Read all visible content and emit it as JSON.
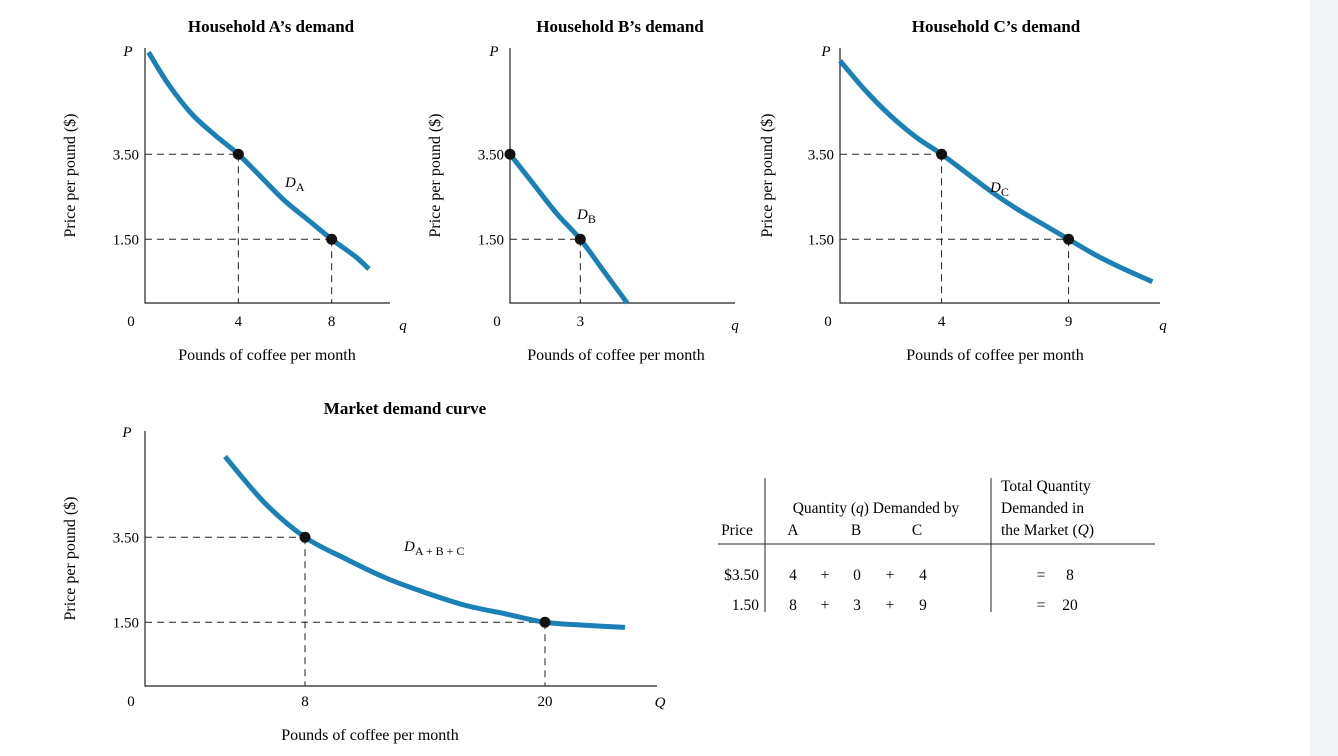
{
  "colors": {
    "curve": "#1a80b6",
    "ink": "#222222"
  },
  "chart_data": [
    {
      "type": "line",
      "title": "Household A’s demand",
      "ylabel": "Price per pound ($)",
      "xlabel": "Pounds of coffee per month",
      "x_axis_letter": "q",
      "y_axis_letter": "P",
      "origin_label": "0",
      "curve_label": "D",
      "curve_label_sub": "A",
      "xticks": [
        "4",
        "8"
      ],
      "yticks": [
        "3.50",
        "1.50"
      ],
      "xlim": [
        0,
        10.5
      ],
      "ylim": [
        0,
        6.0
      ],
      "curve": [
        [
          0.15,
          5.9
        ],
        [
          1,
          5.15
        ],
        [
          2,
          4.45
        ],
        [
          3,
          3.95
        ],
        [
          4,
          3.5
        ],
        [
          5,
          2.95
        ],
        [
          6,
          2.4
        ],
        [
          7,
          1.95
        ],
        [
          8,
          1.5
        ],
        [
          9,
          1.1
        ],
        [
          9.6,
          0.8
        ]
      ],
      "points": [
        {
          "x": 4,
          "y": 3.5
        },
        {
          "x": 8,
          "y": 1.5
        }
      ]
    },
    {
      "type": "line",
      "title": "Household B’s demand",
      "ylabel": "Price per pound ($)",
      "xlabel": "Pounds of coffee per month",
      "x_axis_letter": "q",
      "y_axis_letter": "P",
      "origin_label": "0",
      "curve_label": "D",
      "curve_label_sub": "B",
      "xticks": [
        "3"
      ],
      "yticks": [
        "3.50",
        "1.50"
      ],
      "xlim": [
        0,
        9.6
      ],
      "ylim": [
        0,
        6.0
      ],
      "curve": [
        [
          0,
          3.5
        ],
        [
          1,
          2.8
        ],
        [
          2,
          2.1
        ],
        [
          3,
          1.5
        ],
        [
          4,
          0.75
        ],
        [
          5,
          0.0
        ]
      ],
      "points": [
        {
          "x": 0,
          "y": 3.5
        },
        {
          "x": 3,
          "y": 1.5
        }
      ]
    },
    {
      "type": "line",
      "title": "Household C’s demand",
      "ylabel": "Price per pound ($)",
      "xlabel": "Pounds of coffee per month",
      "x_axis_letter": "q",
      "y_axis_letter": "P",
      "origin_label": "0",
      "curve_label": "D",
      "curve_label_sub": "C",
      "xticks": [
        "4",
        "9"
      ],
      "yticks": [
        "3.50",
        "1.50"
      ],
      "xlim": [
        0,
        12.6
      ],
      "ylim": [
        0,
        6.0
      ],
      "curve": [
        [
          0,
          5.7
        ],
        [
          1,
          5.0
        ],
        [
          2,
          4.4
        ],
        [
          3,
          3.9
        ],
        [
          4,
          3.5
        ],
        [
          5,
          3.05
        ],
        [
          6,
          2.6
        ],
        [
          7,
          2.2
        ],
        [
          8,
          1.85
        ],
        [
          9,
          1.5
        ],
        [
          10,
          1.15
        ],
        [
          11,
          0.85
        ],
        [
          12.3,
          0.5
        ]
      ],
      "points": [
        {
          "x": 4,
          "y": 3.5
        },
        {
          "x": 9,
          "y": 1.5
        }
      ]
    },
    {
      "type": "line",
      "title": "Market demand curve",
      "ylabel": "Price per pound ($)",
      "xlabel": "Pounds of coffee per month",
      "x_axis_letter": "Q",
      "y_axis_letter": "P",
      "origin_label": "0",
      "curve_label": "D",
      "curve_label_sub": "A + B + C",
      "xticks": [
        "8",
        "20"
      ],
      "yticks": [
        "3.50",
        "1.50"
      ],
      "xlim": [
        0,
        25.6
      ],
      "ylim": [
        0,
        6.0
      ],
      "curve": [
        [
          4.0,
          5.4
        ],
        [
          6,
          4.3
        ],
        [
          8,
          3.5
        ],
        [
          10,
          3.0
        ],
        [
          12,
          2.55
        ],
        [
          14,
          2.2
        ],
        [
          16,
          1.9
        ],
        [
          18,
          1.7
        ],
        [
          20,
          1.5
        ],
        [
          22,
          1.43
        ],
        [
          24,
          1.38
        ]
      ],
      "points": [
        {
          "x": 8,
          "y": 3.5
        },
        {
          "x": 20,
          "y": 1.5
        }
      ]
    }
  ],
  "table": {
    "price_header": "Price",
    "qty_header": "Quantity (q) Demanded by",
    "qty_header_pre": "Quantity (",
    "qty_header_var": "q",
    "qty_header_post": ") Demanded by",
    "col_a": "A",
    "col_b": "B",
    "col_c": "C",
    "total_header_1": "Total Quantity",
    "total_header_2": "Demanded in",
    "total_header_3_pre": "the Market (",
    "total_header_3_var": "Q",
    "total_header_3_post": ")",
    "plus": "+",
    "equals": "=",
    "rows": [
      {
        "price": "$3.50",
        "a": "4",
        "b": "0",
        "c": "4",
        "total": "8"
      },
      {
        "price": "1.50",
        "a": "8",
        "b": "3",
        "c": "9",
        "total": "20"
      }
    ]
  }
}
